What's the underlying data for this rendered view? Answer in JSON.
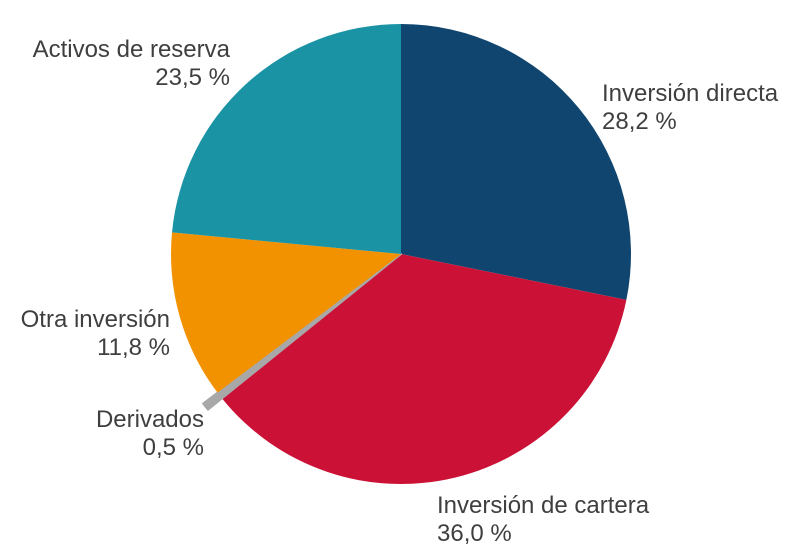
{
  "chart_data": {
    "type": "pie",
    "direction": "clockwise",
    "start_angle_deg": 0,
    "legend_position": "outside-labels",
    "background_color": "#ffffff",
    "label_color": "#3f3f3f",
    "slices": [
      {
        "label": "Inversión directa",
        "value": 28.2,
        "pct_label": "28,2 %",
        "color": "#10456f",
        "exploded": false
      },
      {
        "label": "Inversión de cartera",
        "value": 36.0,
        "pct_label": "36,0 %",
        "color": "#cb1236",
        "exploded": false
      },
      {
        "label": "Derivados",
        "value": 0.5,
        "pct_label": "0,5 %",
        "color": "#a8a8a8",
        "exploded": true
      },
      {
        "label": "Otra inversión",
        "value": 11.8,
        "pct_label": "11,8 %",
        "color": "#f39200",
        "exploded": false
      },
      {
        "label": "Activos de reserva",
        "value": 23.5,
        "pct_label": "23,5 %",
        "color": "#1a93a4",
        "exploded": false
      }
    ]
  }
}
